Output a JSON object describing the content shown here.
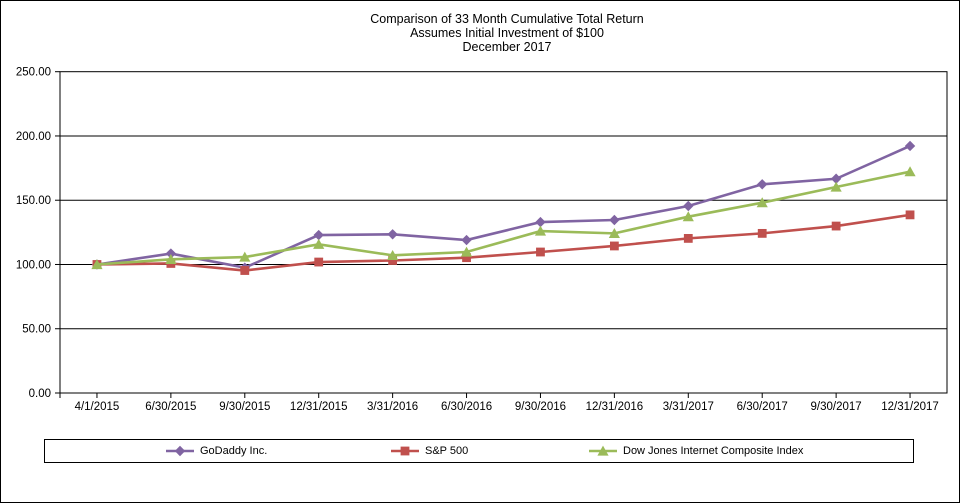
{
  "chart_data": {
    "type": "line",
    "title": "Comparison of 33 Month Cumulative Total Return",
    "subtitle": "Assumes Initial Investment of $100",
    "date_line": "December 2017",
    "categories": [
      "4/1/2015",
      "6/30/2015",
      "9/30/2015",
      "12/31/2015",
      "3/31/2016",
      "6/30/2016",
      "9/30/2016",
      "12/31/2016",
      "3/31/2017",
      "6/30/2017",
      "9/30/2017",
      "12/31/2017"
    ],
    "series": [
      {
        "name": "GoDaddy Inc.",
        "marker": "diamond",
        "color": "#8064A2",
        "values": [
          100.0,
          108.5,
          97.5,
          122.9,
          123.5,
          119.0,
          133.0,
          134.6,
          145.5,
          162.4,
          166.7,
          192.2
        ]
      },
      {
        "name": "S&P 500",
        "marker": "square",
        "color": "#C0504D",
        "values": [
          100.0,
          100.8,
          95.3,
          101.9,
          103.1,
          105.3,
          109.7,
          114.4,
          120.3,
          124.2,
          129.9,
          138.6
        ]
      },
      {
        "name": "Dow Jones Internet Composite Index",
        "marker": "triangle",
        "color": "#9BBB59",
        "values": [
          100.0,
          104.0,
          105.8,
          115.7,
          107.1,
          109.7,
          126.0,
          124.2,
          137.2,
          148.1,
          160.3,
          172.2
        ]
      }
    ],
    "ylim": [
      0,
      250
    ],
    "y_tick_step": 50,
    "y_tick_labels": [
      "0.00",
      "50.00",
      "100.00",
      "150.00",
      "200.00",
      "250.00"
    ],
    "grid": true,
    "axis_color": "#000000",
    "background_color": "#ffffff",
    "legend_position": "bottom"
  }
}
